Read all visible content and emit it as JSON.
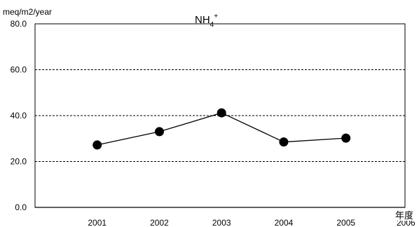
{
  "chart_data": {
    "type": "line",
    "title": "NH",
    "title_subscript": "4",
    "title_superscript": "+",
    "ylabel": "meq/m2/year",
    "xlabel": "年度",
    "x": [
      "2001",
      "2002",
      "2003",
      "2004",
      "2005"
    ],
    "hidden_tick": "2006",
    "series": [
      {
        "values": [
          27.2,
          33.0,
          41.2,
          28.5,
          30.2
        ]
      }
    ],
    "ylim": [
      0,
      80
    ],
    "yticks": [
      "0.0",
      "20.0",
      "40.0",
      "60.0",
      "80.0"
    ],
    "grid": true,
    "grid_style": "dashed",
    "legend": "none",
    "colors": {
      "line": "#000000",
      "marker": "#000000",
      "grid": "#000000",
      "background": "#ffffff"
    }
  }
}
